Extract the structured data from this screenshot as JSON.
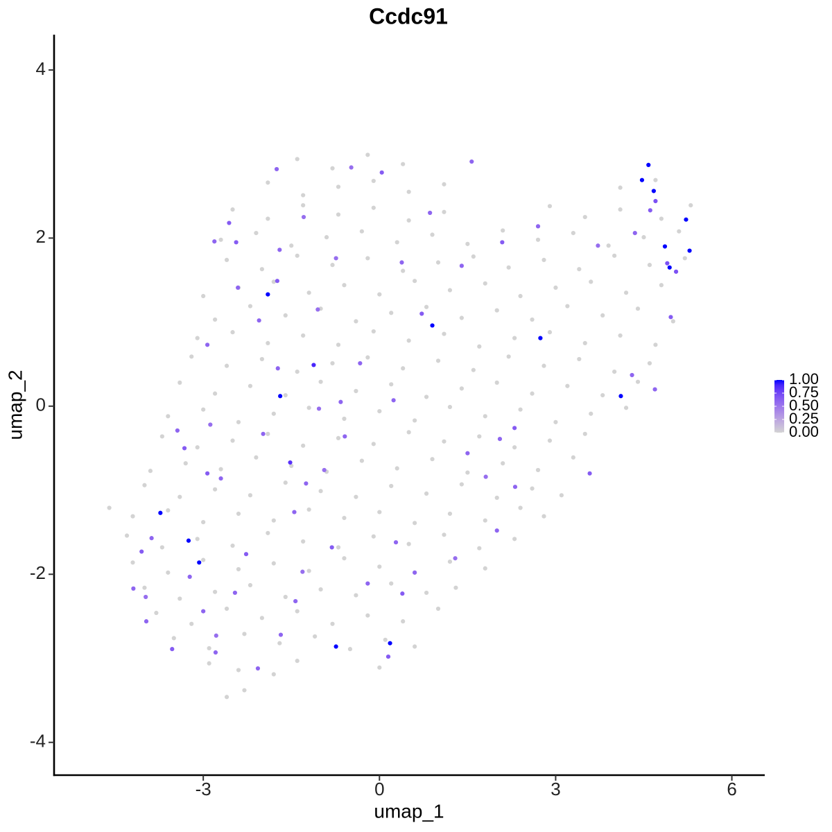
{
  "chart_data": {
    "type": "scatter",
    "title": "Ccdc91",
    "x_label": "umap_1",
    "y_label": "umap_2",
    "xlim": [
      -5.54,
      6.56
    ],
    "ylim": [
      -4.39,
      4.42
    ],
    "xticks": [
      -3,
      0,
      3,
      6
    ],
    "yticks": [
      -4,
      -2,
      0,
      2,
      4
    ],
    "color_low": "#d3d3d3",
    "color_high": "#0000ff",
    "colorbar_lim": [
      0,
      1
    ],
    "colorbar_ticks": [
      {
        "value": 0,
        "label": "0.00"
      },
      {
        "value": 0.25,
        "label": "0.25"
      },
      {
        "value": 0.5,
        "label": "0.50"
      },
      {
        "value": 0.75,
        "label": "0.75"
      },
      {
        "value": 1,
        "label": "1.00"
      }
    ],
    "legend_position": "right",
    "x": [
      -1.4,
      -0.8,
      -0.2,
      0.4,
      -1.9,
      -1.3,
      -0.7,
      -0.1,
      0.5,
      1.1,
      4.1,
      4.7,
      -2.5,
      -1.9,
      -1.3,
      -0.7,
      -0.1,
      0.5,
      1.1,
      2.9,
      3.5,
      4.1,
      4.8,
      5.3,
      -2.7,
      -2.1,
      -1.5,
      -0.9,
      -0.3,
      0.3,
      0.9,
      1.5,
      2.1,
      2.7,
      3.3,
      3.9,
      4.5,
      5.1,
      -2.6,
      -2.0,
      -1.4,
      -0.8,
      -0.2,
      0.4,
      1.0,
      1.6,
      2.2,
      2.8,
      3.4,
      4.0,
      4.6,
      5.2,
      -3.0,
      -2.4,
      -1.8,
      -1.2,
      -0.6,
      0.0,
      0.6,
      1.2,
      1.8,
      2.4,
      3.0,
      3.6,
      4.2,
      4.8,
      -2.8,
      -2.2,
      -1.6,
      -1.0,
      -0.4,
      0.2,
      0.8,
      1.4,
      2.0,
      2.6,
      3.2,
      3.8,
      4.4,
      5.0,
      -3.1,
      -2.5,
      -1.9,
      -1.3,
      -0.7,
      -0.1,
      0.5,
      1.1,
      1.7,
      2.3,
      2.9,
      3.5,
      4.1,
      4.7,
      -3.2,
      -2.6,
      -2.0,
      -1.4,
      -0.8,
      -0.2,
      0.4,
      1.0,
      1.6,
      2.2,
      2.8,
      3.4,
      4.0,
      4.6,
      -3.4,
      -2.8,
      -2.2,
      -1.6,
      -1.0,
      -0.4,
      0.2,
      0.8,
      1.4,
      2.0,
      2.6,
      3.2,
      3.8,
      4.4,
      -3.6,
      -3.0,
      -2.4,
      -1.8,
      -1.2,
      -0.6,
      0.0,
      0.6,
      1.2,
      1.8,
      2.4,
      3.0,
      3.6,
      4.2,
      -3.7,
      -3.1,
      -2.5,
      -1.9,
      -1.3,
      -0.7,
      -0.1,
      0.5,
      1.1,
      1.7,
      2.3,
      2.9,
      3.5,
      -3.9,
      -3.3,
      -2.7,
      -2.1,
      -1.5,
      -0.9,
      -0.3,
      0.3,
      0.9,
      1.5,
      2.1,
      2.7,
      3.3,
      -4.0,
      -3.4,
      -2.8,
      -2.2,
      -1.6,
      -1.0,
      -0.4,
      0.2,
      0.8,
      1.4,
      2.0,
      2.6,
      3.1,
      -4.6,
      -4.2,
      -3.6,
      -3.0,
      -2.4,
      -1.8,
      -1.2,
      -0.6,
      0.0,
      0.6,
      1.2,
      1.8,
      2.4,
      2.8,
      -4.3,
      -3.7,
      -3.1,
      -2.5,
      -1.9,
      -1.3,
      -0.7,
      -0.1,
      0.5,
      1.1,
      1.7,
      2.3,
      -4.2,
      -3.6,
      -3.0,
      -2.4,
      -1.8,
      -1.2,
      -0.6,
      0.0,
      0.6,
      1.2,
      1.8,
      -4.0,
      -3.4,
      -2.8,
      -2.2,
      -1.6,
      -1.0,
      -0.4,
      0.2,
      0.8,
      1.3,
      -3.8,
      -3.2,
      -2.6,
      -2.0,
      -1.4,
      -0.8,
      -0.2,
      0.4,
      1.0,
      -3.5,
      -2.9,
      -2.3,
      -1.7,
      -1.1,
      -0.5,
      0.1,
      0.6,
      -2.9,
      -2.4,
      -1.8,
      -1.4,
      0.0,
      -2.6,
      -2.3,
      1.57,
      0.04,
      -0.48,
      -1.75,
      -2.56,
      -1.29,
      -2.81,
      -2.44,
      -1.7,
      -0.74,
      0.38,
      0.86,
      2.09,
      2.7,
      3.72,
      4.35,
      1.4,
      -1.74,
      -2.41,
      -1.05,
      -2.05,
      -2.93,
      0.72,
      -0.33,
      -1.73,
      -2.88,
      -3.44,
      -3.32,
      -1.98,
      -0.66,
      -1.03,
      0.24,
      -2.93,
      -2.7,
      -1.25,
      -0.94,
      -0.59,
      1.5,
      2.3,
      2.05,
      1.81,
      2.31,
      3.58,
      4.3,
      4.69,
      4.96,
      -3.88,
      -4.05,
      -4.19,
      -3.98,
      -3.97,
      -3.53,
      -3.23,
      -3.0,
      -2.78,
      -2.46,
      -2.27,
      -2.07,
      -1.68,
      -1.31,
      -1.43,
      -0.81,
      -0.2,
      0.28,
      0.39,
      0.6,
      1.29,
      0.15,
      2.0,
      -2.79,
      -1.45,
      4.9,
      4.7,
      4.61,
      5.05,
      4.58,
      4.47,
      4.67,
      5.22,
      4.86,
      5.28,
      4.94,
      -1.9,
      0.9,
      2.74,
      -1.12,
      -1.69,
      4.11,
      -1.52,
      -3.73,
      -3.25,
      -3.07,
      -0.74,
      0.18
    ],
    "y": [
      2.94,
      2.83,
      2.99,
      2.88,
      2.66,
      2.51,
      2.61,
      2.68,
      2.55,
      2.64,
      2.6,
      2.69,
      2.34,
      2.23,
      2.39,
      2.28,
      2.36,
      2.21,
      2.31,
      2.38,
      2.25,
      2.34,
      2.23,
      2.39,
      1.98,
      2.06,
      1.91,
      2.01,
      2.08,
      1.95,
      2.04,
      1.93,
      2.09,
      1.98,
      2.06,
      1.91,
      2.01,
      2.08,
      1.74,
      1.63,
      1.79,
      1.68,
      1.76,
      1.61,
      1.71,
      1.78,
      1.65,
      1.74,
      1.63,
      1.79,
      1.68,
      1.76,
      1.31,
      1.41,
      1.48,
      1.35,
      1.44,
      1.33,
      1.49,
      1.38,
      1.46,
      1.31,
      1.41,
      1.48,
      1.35,
      1.44,
      1.03,
      1.19,
      1.08,
      1.16,
      1.01,
      1.11,
      1.18,
      1.05,
      1.14,
      1.03,
      1.19,
      1.08,
      1.16,
      1.01,
      0.81,
      0.88,
      0.75,
      0.84,
      0.73,
      0.89,
      0.78,
      0.86,
      0.71,
      0.81,
      0.88,
      0.75,
      0.84,
      0.73,
      0.59,
      0.48,
      0.56,
      0.41,
      0.51,
      0.58,
      0.45,
      0.54,
      0.43,
      0.59,
      0.48,
      0.56,
      0.41,
      0.51,
      0.28,
      0.15,
      0.24,
      0.13,
      0.29,
      0.18,
      0.26,
      0.11,
      0.21,
      0.28,
      0.15,
      0.24,
      0.13,
      0.29,
      -0.12,
      -0.04,
      -0.19,
      -0.09,
      -0.02,
      -0.15,
      -0.06,
      -0.17,
      -0.01,
      -0.12,
      -0.04,
      -0.19,
      -0.09,
      -0.02,
      -0.36,
      -0.49,
      -0.41,
      -0.33,
      -0.47,
      -0.38,
      -0.45,
      -0.31,
      -0.42,
      -0.36,
      -0.49,
      -0.41,
      -0.33,
      -0.77,
      -0.68,
      -0.75,
      -0.61,
      -0.71,
      -0.78,
      -0.65,
      -0.74,
      -0.63,
      -0.79,
      -0.68,
      -0.76,
      -0.61,
      -0.94,
      -1.08,
      -0.99,
      -1.06,
      -0.91,
      -1.01,
      -1.08,
      -0.95,
      -1.04,
      -0.93,
      -1.09,
      -0.98,
      -1.06,
      -1.21,
      -1.31,
      -1.24,
      -1.38,
      -1.28,
      -1.36,
      -1.23,
      -1.33,
      -1.26,
      -1.39,
      -1.28,
      -1.36,
      -1.21,
      -1.31,
      -1.54,
      -1.68,
      -1.58,
      -1.66,
      -1.51,
      -1.61,
      -1.68,
      -1.55,
      -1.64,
      -1.53,
      -1.69,
      -1.58,
      -1.86,
      -1.98,
      -1.83,
      -1.94,
      -1.87,
      -1.96,
      -1.81,
      -1.91,
      -1.98,
      -1.85,
      -1.93,
      -2.16,
      -2.29,
      -2.21,
      -2.13,
      -2.27,
      -2.18,
      -2.25,
      -2.11,
      -2.22,
      -2.16,
      -2.46,
      -2.59,
      -2.41,
      -2.52,
      -2.44,
      -2.59,
      -2.49,
      -2.56,
      -2.41,
      -2.76,
      -2.88,
      -2.71,
      -2.82,
      -2.74,
      -2.89,
      -2.78,
      -2.86,
      -3.06,
      -3.14,
      -3.19,
      -3.03,
      -3.11,
      -3.46,
      -3.38,
      2.91,
      2.78,
      2.84,
      2.82,
      2.18,
      2.25,
      1.96,
      1.95,
      1.86,
      1.76,
      1.71,
      2.3,
      1.95,
      2.14,
      1.91,
      2.06,
      1.67,
      1.49,
      1.41,
      1.15,
      1.02,
      0.73,
      1.1,
      0.51,
      0.45,
      -0.22,
      -0.29,
      -0.5,
      -0.33,
      0.05,
      -0.03,
      0.07,
      -0.8,
      -0.86,
      -0.92,
      -0.76,
      -0.36,
      -0.56,
      -0.26,
      -0.39,
      -0.84,
      -0.96,
      -0.8,
      0.37,
      0.2,
      1.06,
      -1.57,
      -1.73,
      -2.17,
      -2.27,
      -2.56,
      -2.89,
      -2.03,
      -2.44,
      -2.73,
      -2.22,
      -1.76,
      -3.12,
      -2.72,
      -1.97,
      -2.32,
      -1.68,
      -2.11,
      -1.62,
      -2.23,
      -1.98,
      -1.81,
      -2.98,
      -1.48,
      -2.93,
      -1.26,
      1.7,
      2.44,
      2.33,
      1.6,
      2.87,
      2.69,
      2.56,
      2.22,
      1.9,
      1.85,
      1.65,
      1.33,
      0.96,
      0.81,
      0.49,
      0.12,
      0.12,
      -0.67,
      -1.27,
      -1.6,
      -1.86,
      -2.86,
      -2.82
    ],
    "values": [
      0,
      0,
      0,
      0,
      0,
      0,
      0,
      0,
      0,
      0,
      0,
      0,
      0,
      0,
      0,
      0,
      0,
      0,
      0,
      0,
      0,
      0,
      0,
      0,
      0,
      0,
      0,
      0,
      0,
      0,
      0,
      0,
      0,
      0,
      0,
      0,
      0,
      0,
      0,
      0,
      0,
      0,
      0,
      0,
      0,
      0,
      0,
      0,
      0,
      0,
      0,
      0,
      0,
      0,
      0,
      0,
      0,
      0,
      0,
      0,
      0,
      0,
      0,
      0,
      0,
      0,
      0,
      0,
      0,
      0,
      0,
      0,
      0,
      0,
      0,
      0,
      0,
      0,
      0,
      0,
      0,
      0,
      0,
      0,
      0,
      0,
      0,
      0,
      0,
      0,
      0,
      0,
      0,
      0,
      0,
      0,
      0,
      0,
      0,
      0,
      0,
      0,
      0,
      0,
      0,
      0,
      0,
      0,
      0,
      0,
      0,
      0,
      0,
      0,
      0,
      0,
      0,
      0,
      0,
      0,
      0,
      0,
      0,
      0,
      0,
      0,
      0,
      0,
      0,
      0,
      0,
      0,
      0,
      0,
      0,
      0,
      0,
      0,
      0,
      0,
      0,
      0,
      0,
      0,
      0,
      0,
      0,
      0,
      0,
      0,
      0,
      0,
      0,
      0,
      0,
      0,
      0,
      0,
      0,
      0,
      0,
      0,
      0,
      0,
      0,
      0,
      0,
      0,
      0,
      0,
      0,
      0,
      0,
      0,
      0,
      0,
      0,
      0,
      0,
      0,
      0,
      0,
      0,
      0,
      0,
      0,
      0,
      0,
      0,
      0,
      0,
      0,
      0,
      0,
      0,
      0,
      0,
      0,
      0,
      0,
      0,
      0,
      0,
      0,
      0,
      0,
      0,
      0,
      0,
      0,
      0,
      0,
      0,
      0,
      0,
      0,
      0,
      0,
      0,
      0,
      0,
      0,
      0,
      0,
      0,
      0,
      0,
      0,
      0,
      0,
      0,
      0,
      0,
      0,
      0,
      0,
      0,
      0,
      0,
      0,
      0,
      0,
      0,
      0,
      0,
      0,
      0.6,
      0.65,
      0.55,
      0.6,
      0.65,
      0.55,
      0.6,
      0.65,
      0.6,
      0.55,
      0.6,
      0.6,
      0.65,
      0.6,
      0.55,
      0.6,
      0.6,
      0.65,
      0.6,
      0.55,
      0.6,
      0.6,
      0.65,
      0.6,
      0.6,
      0.55,
      0.6,
      0.65,
      0.6,
      0.6,
      0.55,
      0.6,
      0.65,
      0.6,
      0.6,
      0.55,
      0.6,
      0.6,
      0.65,
      0.6,
      0.55,
      0.6,
      0.65,
      0.6,
      0.6,
      0.65,
      0.6,
      0.65,
      0.6,
      0.55,
      0.6,
      0.65,
      0.6,
      0.6,
      0.55,
      0.6,
      0.65,
      0.6,
      0.6,
      0.55,
      0.6,
      0.65,
      0.6,
      0.6,
      0.65,
      0.6,
      0.55,
      0.65,
      0.6,
      0.6,
      0.6,
      0.7,
      0.7,
      0.65,
      0.7,
      1,
      1,
      1,
      1,
      1,
      1,
      1,
      1,
      1,
      1,
      0.9,
      1,
      1,
      0.85,
      1,
      1,
      1,
      1,
      1
    ]
  }
}
